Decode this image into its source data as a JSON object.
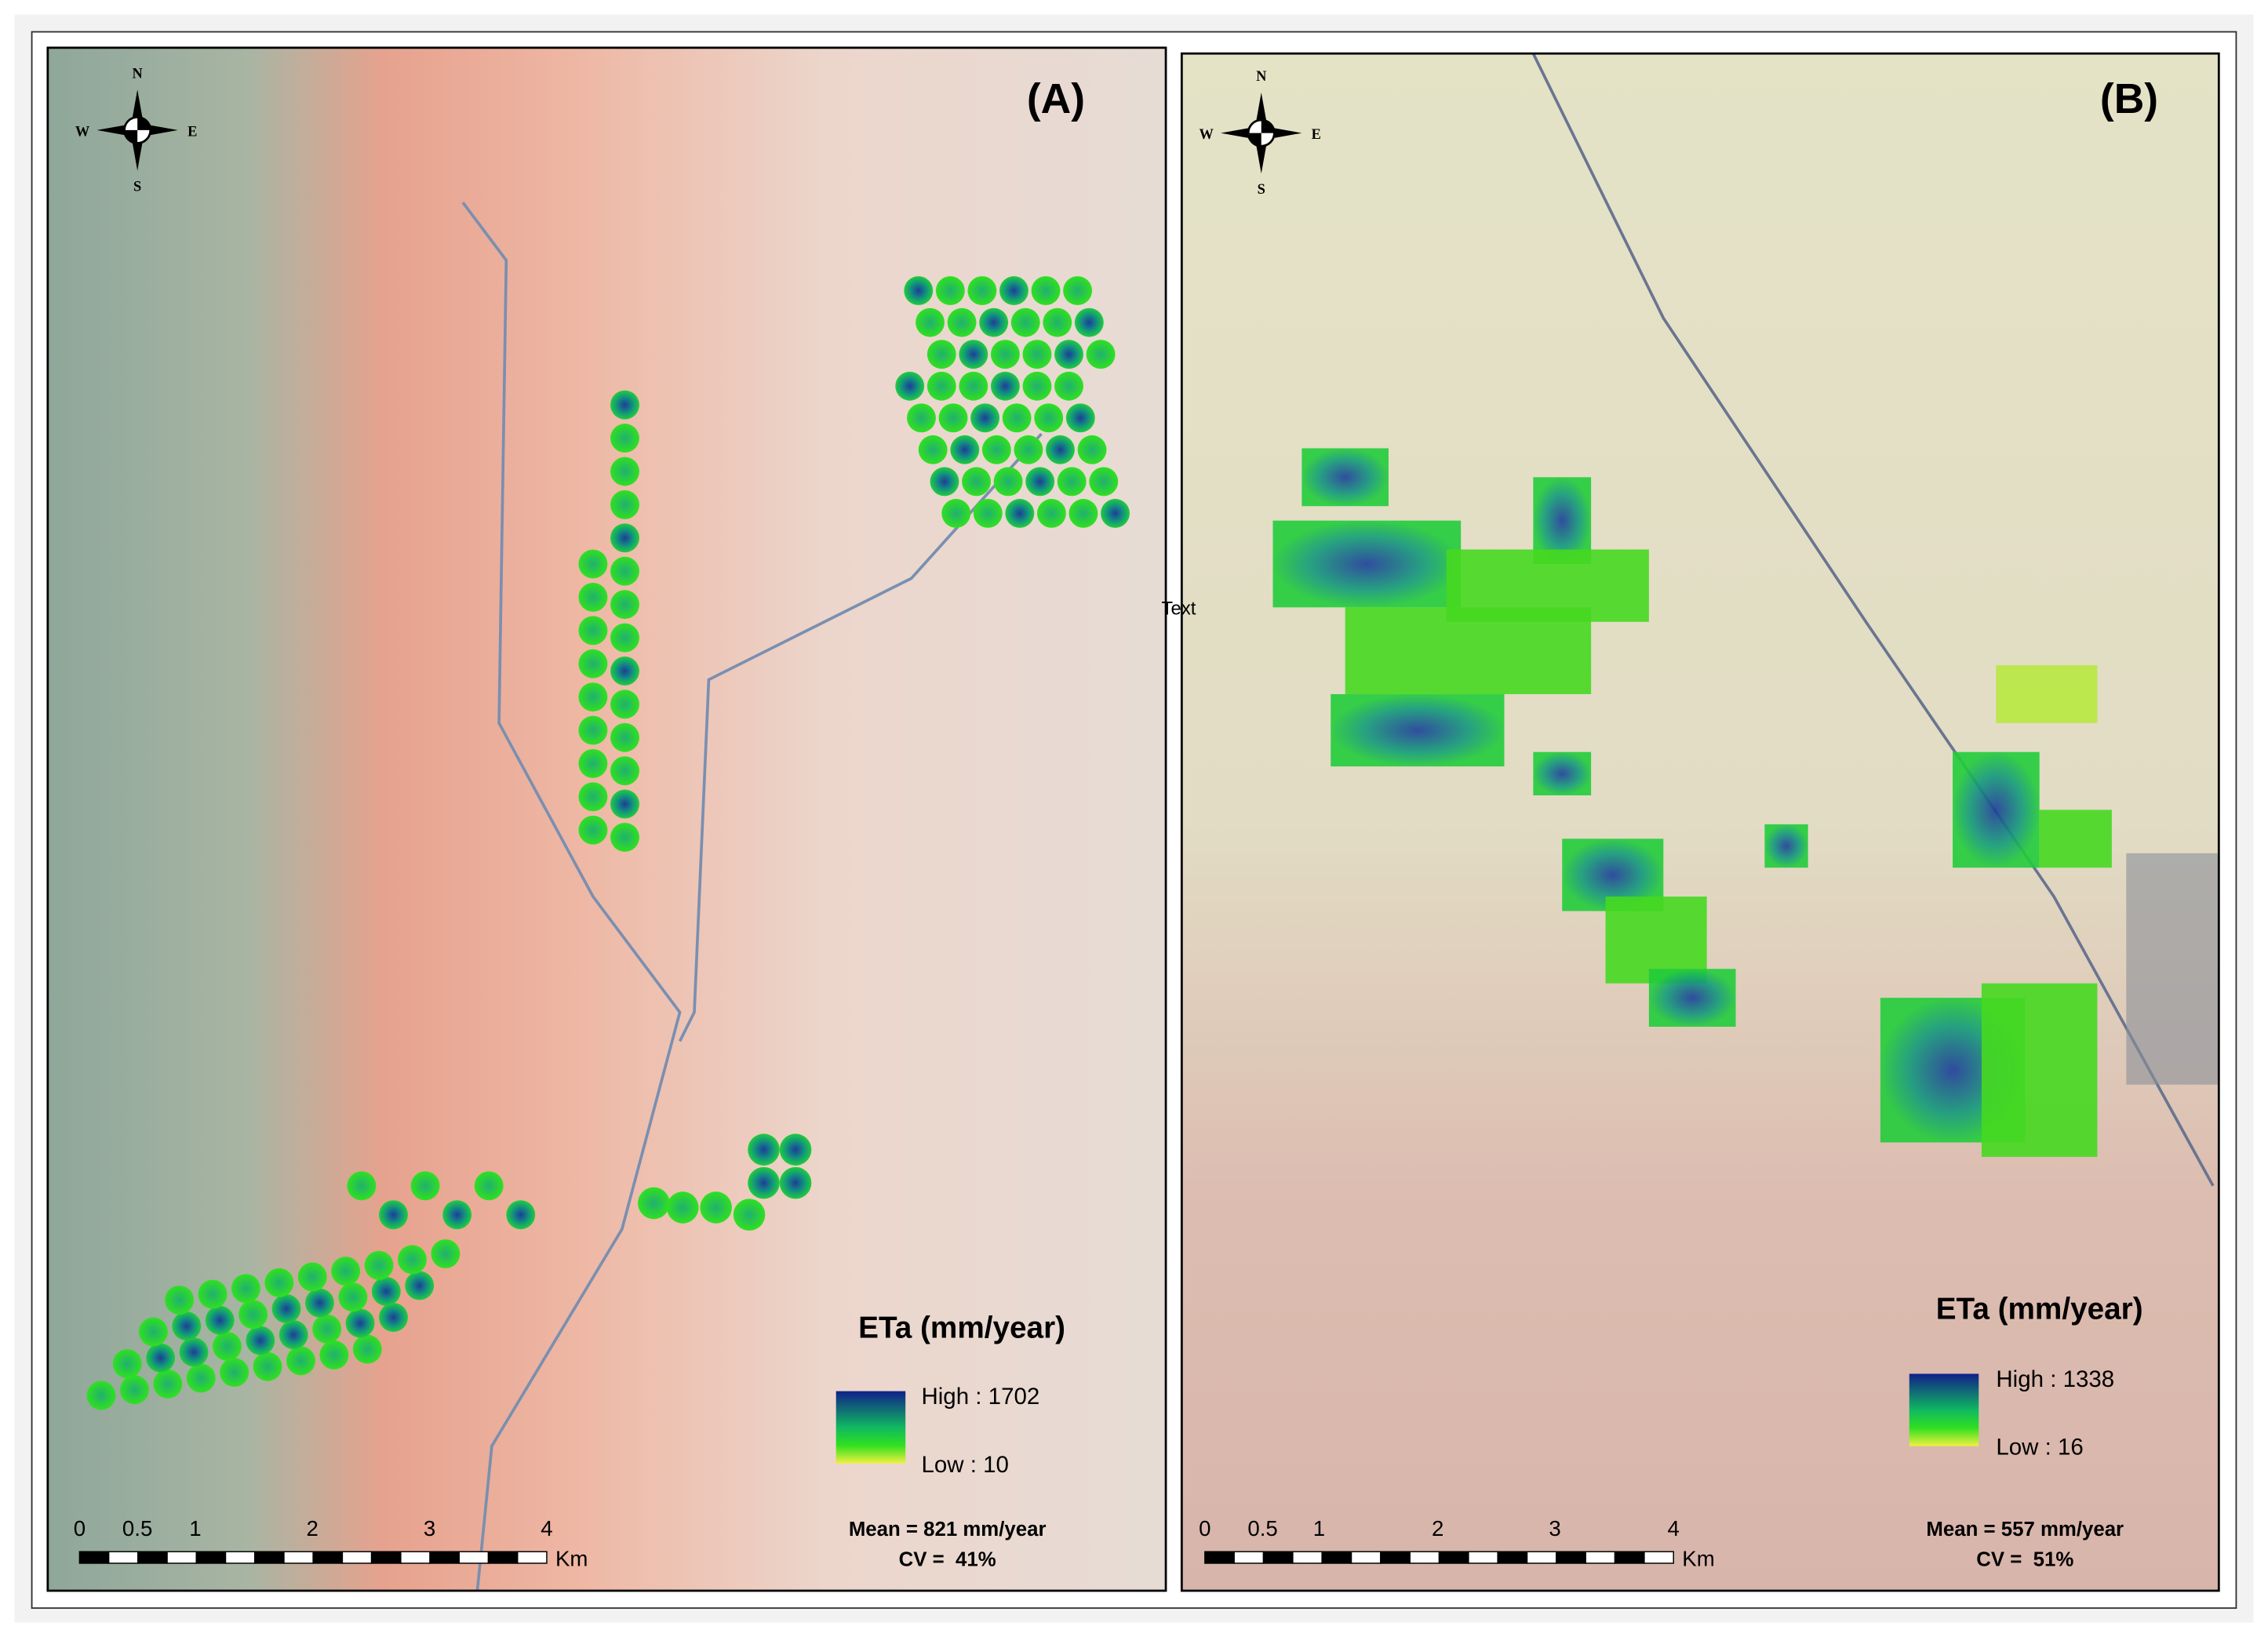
{
  "panels": [
    {
      "label": "(A)",
      "compass": {
        "n": "N",
        "s": "S",
        "e": "E",
        "w": "W"
      },
      "legend": {
        "title": "ETa (mm/year)",
        "high": "High : 1702",
        "low": "Low : 10"
      },
      "scale_bar": {
        "labels": [
          "0",
          "0.5",
          "1",
          "2",
          "3",
          "4"
        ],
        "unit": "Km"
      },
      "stats": {
        "mean": "Mean = 821 mm/year",
        "cv": "CV =  41%"
      }
    },
    {
      "label": "(B)",
      "compass": {
        "n": "N",
        "s": "S",
        "e": "E",
        "w": "W"
      },
      "legend": {
        "title": "ETa (mm/year)",
        "high": "High : 1338",
        "low": "Low : 16"
      },
      "scale_bar": {
        "labels": [
          "0",
          "0.5",
          "1",
          "2",
          "3",
          "4"
        ],
        "unit": "Km"
      },
      "stats": {
        "mean": "Mean = 557 mm/year",
        "cv": "CV =  51%"
      }
    }
  ],
  "annotation": "Text"
}
